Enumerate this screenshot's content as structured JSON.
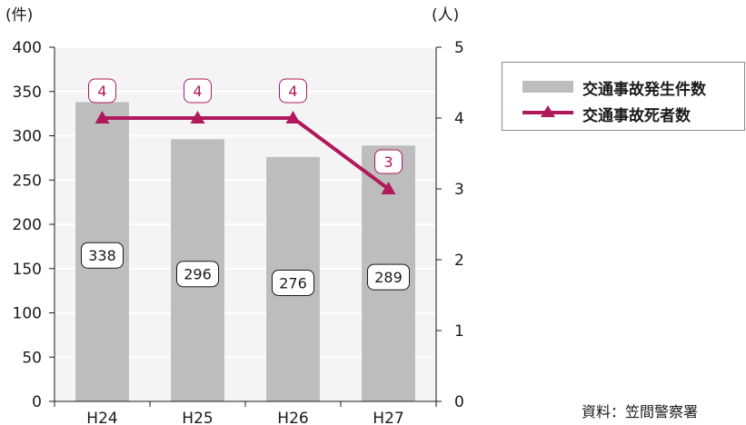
{
  "chart_data": {
    "type": "bar",
    "categories": [
      "H24",
      "H25",
      "H26",
      "H27"
    ],
    "series": [
      {
        "name": "交通事故発生件数",
        "kind": "bar",
        "axis": "left",
        "values": [
          338,
          296,
          276,
          289
        ],
        "color": "#bdbdbd"
      },
      {
        "name": "交通事故死者数",
        "kind": "line",
        "axis": "right",
        "values": [
          4,
          4,
          4,
          3
        ],
        "color": "#b0195c"
      }
    ],
    "left_unit": "(件)",
    "right_unit": "(人)",
    "ylim_left": [
      0,
      400
    ],
    "ylim_right": [
      0,
      5
    ],
    "left_ticks": [
      "0",
      "50",
      "100",
      "150",
      "200",
      "250",
      "300",
      "350",
      "400"
    ],
    "right_ticks": [
      "0",
      "1",
      "2",
      "3",
      "4",
      "5"
    ],
    "grid": true,
    "legend_placement": "right",
    "source": "資料：笠間警察署"
  }
}
